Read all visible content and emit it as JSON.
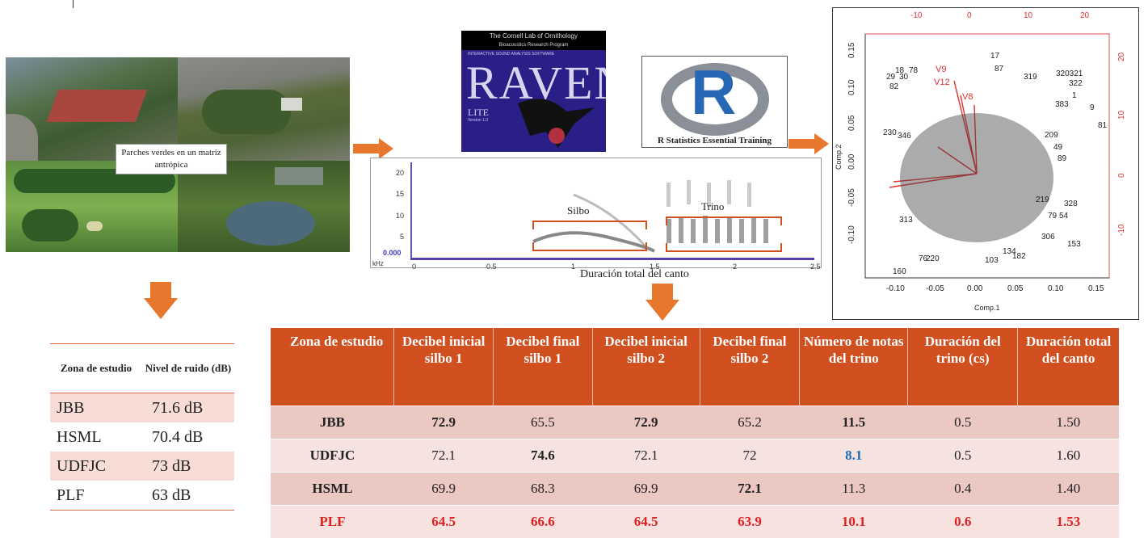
{
  "collage": {
    "label": "Parches verdes en un matriz antrópica"
  },
  "raven": {
    "header": "The Cornell Lab of Ornithology",
    "subheader": "Bioacoustics Research Program",
    "tagline": "INTERACTIVE SOUND ANALYSIS SOFTWARE",
    "word": "RAVEN",
    "lite": "LITE",
    "version": "Version 1.0"
  },
  "r_logo": {
    "letter": "R",
    "caption": "R Statistics Essential Training"
  },
  "spectrogram": {
    "y_unit": "kHz",
    "y_ticks": [
      "20",
      "15",
      "10",
      "5",
      "0.000"
    ],
    "x_ticks": [
      "0",
      "0.5",
      "1",
      "1.5",
      "2",
      "2.5"
    ],
    "label_silbo": "Silbo",
    "label_trino": "Trino",
    "caption": "Duración total del canto"
  },
  "pca": {
    "xlabel": "Comp.1",
    "ylabel": "Comp.2",
    "bottom_ticks": [
      "-0.10",
      "-0.05",
      "0.00",
      "0.05",
      "0.10",
      "0.15"
    ],
    "left_ticks": [
      "0.15",
      "0.10",
      "0.05",
      "0.00",
      "-0.05",
      "-0.10"
    ],
    "top_ticks": [
      "-10",
      "0",
      "10",
      "20"
    ],
    "right_ticks": [
      "20",
      "10",
      "0",
      "-10"
    ],
    "loading_labels": [
      "V9",
      "V12",
      "V8"
    ],
    "point_labels": [
      "17",
      "87",
      "319",
      "320321",
      "322",
      "18",
      "78",
      "29",
      "30",
      "82",
      "1",
      "9",
      "81",
      "383",
      "209",
      "49",
      "89",
      "328",
      "230",
      "346",
      "313",
      "153",
      "160",
      "134",
      "103",
      "182",
      "76",
      "220",
      "306",
      "79",
      "54",
      "219"
    ]
  },
  "noise_table": {
    "headers": [
      "Zona de estudio",
      "Nivel de ruido (dB)"
    ],
    "rows": [
      {
        "zone": "JBB",
        "level": "71.6 dB"
      },
      {
        "zone": "HSML",
        "level": "70.4 dB"
      },
      {
        "zone": "UDFJC",
        "level": "73 dB"
      },
      {
        "zone": "PLF",
        "level": "63 dB"
      }
    ]
  },
  "song_table": {
    "headers": [
      "Zona de estudio",
      "Decibel inicial silbo 1",
      "Decibel final silbo 1",
      "Decibel inicial silbo 2",
      "Decibel final silbo 2",
      "Número de notas del trino",
      "Duración del trino (cs)",
      "Duración total del canto"
    ],
    "rows": [
      [
        "JBB",
        "72.9",
        "65.5",
        "72.9",
        "65.2",
        "11.5",
        "0.5",
        "1.50"
      ],
      [
        "UDFJC",
        "72.1",
        "74.6",
        "72.1",
        "72",
        "8.1",
        "0.5",
        "1.60"
      ],
      [
        "HSML",
        "69.9",
        "68.3",
        "69.9",
        "72.1",
        "11.3",
        "0.4",
        "1.40"
      ],
      [
        "PLF",
        "64.5",
        "66.6",
        "64.5",
        "63.9",
        "10.1",
        "0.6",
        "1.53"
      ]
    ]
  }
}
